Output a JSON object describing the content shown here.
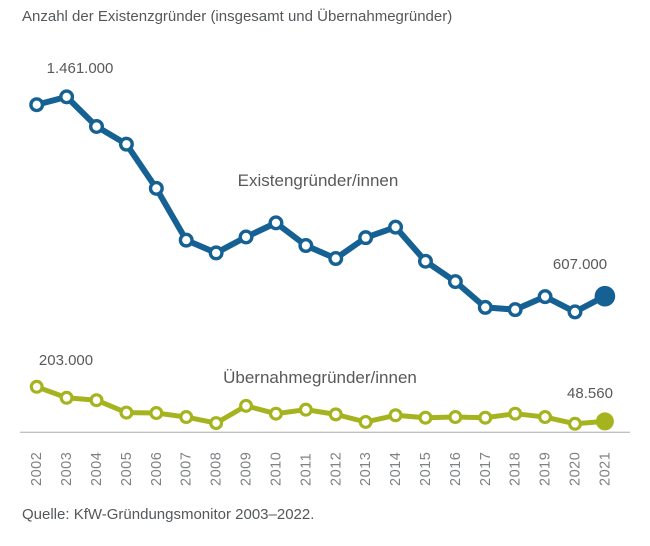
{
  "source": "Quelle: KfW-Gründungsmonitor 2003–2022.",
  "colors": {
    "founders_total": "#166194",
    "takeover_founders": "#A5B41E",
    "label_text": "#595959",
    "axis_line": "#C0C0C0",
    "year_text": "#7E8184"
  },
  "chart_data": {
    "type": "line",
    "title": "Anzahl der Existenzgründer (insgesamt und Übernahmegründer)",
    "x": [
      "2002",
      "2003",
      "2004",
      "2005",
      "2006",
      "2007",
      "2008",
      "2009",
      "2010",
      "2011",
      "2012",
      "2013",
      "2014",
      "2015",
      "2016",
      "2017",
      "2018",
      "2019",
      "2020",
      "2021"
    ],
    "series": [
      {
        "name": "Existengründer/innen",
        "color": "#166194",
        "values": [
          1461000,
          1496000,
          1364000,
          1285000,
          1088000,
          857000,
          800000,
          871000,
          934000,
          833000,
          775000,
          868000,
          915000,
          763000,
          672000,
          557000,
          547000,
          605000,
          537000,
          607000
        ]
      },
      {
        "name": "Übernahmegründer/innen",
        "color": "#A5B41E",
        "values": [
          203000,
          154000,
          143000,
          88000,
          86000,
          68000,
          41000,
          118000,
          83000,
          101000,
          80000,
          46000,
          76000,
          65000,
          68000,
          65000,
          83000,
          68000,
          38000,
          48560
        ]
      }
    ],
    "annotations": [
      {
        "series": "Existengründer/innen",
        "x": "2002",
        "text": "1.461.000"
      },
      {
        "series": "Existengründer/innen",
        "x": "2021",
        "text": "607.000"
      },
      {
        "series": "Übernahmegründer/innen",
        "x": "2002",
        "text": "203.000"
      },
      {
        "series": "Übernahmegründer/innen",
        "x": "2021",
        "text": "48.560"
      }
    ],
    "ylim": [
      0,
      1550000
    ],
    "grid": false,
    "y_axis_visible": false,
    "x_axis_visible": true,
    "legend_position": "inline-labels"
  }
}
